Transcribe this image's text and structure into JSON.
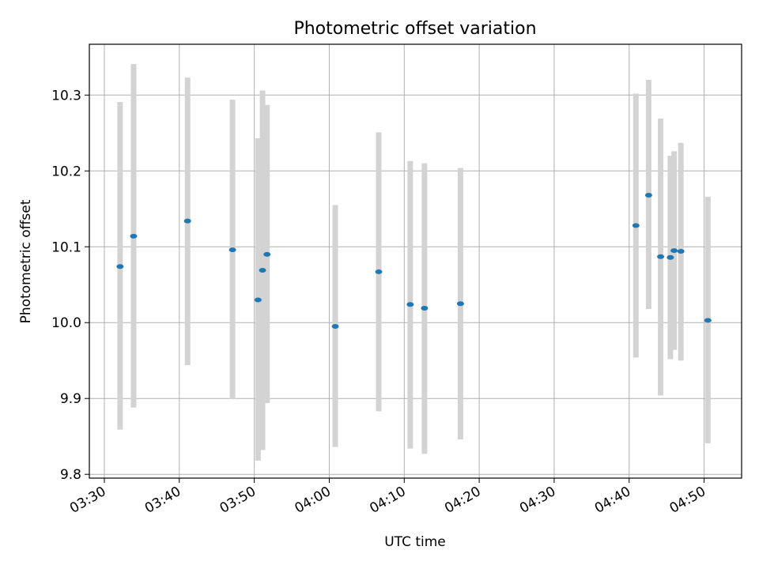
{
  "chart_data": {
    "type": "scatter",
    "title": "Photometric offset variation",
    "xlabel": "UTC time",
    "ylabel": "Photometric offset",
    "grid": true,
    "xlim": [
      208,
      295
    ],
    "ylim": [
      9.795,
      10.367
    ],
    "x_unit": "minutes after 00:00 UTC",
    "x_ticks": [
      {
        "value": 210,
        "label": "03:30"
      },
      {
        "value": 220,
        "label": "03:40"
      },
      {
        "value": 230,
        "label": "03:50"
      },
      {
        "value": 240,
        "label": "04:00"
      },
      {
        "value": 250,
        "label": "04:10"
      },
      {
        "value": 260,
        "label": "04:20"
      },
      {
        "value": 270,
        "label": "04:30"
      },
      {
        "value": 280,
        "label": "04:40"
      },
      {
        "value": 290,
        "label": "04:50"
      }
    ],
    "y_ticks": [
      {
        "value": 9.8,
        "label": "9.8"
      },
      {
        "value": 9.9,
        "label": "9.9"
      },
      {
        "value": 10.0,
        "label": "10.0"
      },
      {
        "value": 10.1,
        "label": "10.1"
      },
      {
        "value": 10.2,
        "label": "10.2"
      },
      {
        "value": 10.3,
        "label": "10.3"
      }
    ],
    "marker_color": "#1f77b4",
    "errorbar_color": "#d3d3d3",
    "points": [
      {
        "x": 212.1,
        "y": 10.074,
        "low": 9.859,
        "high": 10.291
      },
      {
        "x": 213.9,
        "y": 10.114,
        "low": 9.888,
        "high": 10.341
      },
      {
        "x": 221.1,
        "y": 10.134,
        "low": 9.944,
        "high": 10.323
      },
      {
        "x": 227.1,
        "y": 10.096,
        "low": 9.899,
        "high": 10.294
      },
      {
        "x": 230.5,
        "y": 10.03,
        "low": 9.818,
        "high": 10.243
      },
      {
        "x": 231.1,
        "y": 10.069,
        "low": 9.832,
        "high": 10.306
      },
      {
        "x": 231.7,
        "y": 10.09,
        "low": 9.894,
        "high": 10.287
      },
      {
        "x": 240.8,
        "y": 9.995,
        "low": 9.836,
        "high": 10.155
      },
      {
        "x": 246.6,
        "y": 10.067,
        "low": 9.883,
        "high": 10.251
      },
      {
        "x": 250.8,
        "y": 10.024,
        "low": 9.834,
        "high": 10.213
      },
      {
        "x": 252.7,
        "y": 10.019,
        "low": 9.827,
        "high": 10.21
      },
      {
        "x": 257.5,
        "y": 10.025,
        "low": 9.846,
        "high": 10.204
      },
      {
        "x": 280.9,
        "y": 10.128,
        "low": 9.954,
        "high": 10.302
      },
      {
        "x": 282.6,
        "y": 10.168,
        "low": 10.018,
        "high": 10.32
      },
      {
        "x": 284.2,
        "y": 10.087,
        "low": 9.904,
        "high": 10.269
      },
      {
        "x": 285.5,
        "y": 10.086,
        "low": 9.952,
        "high": 10.22
      },
      {
        "x": 286.0,
        "y": 10.095,
        "low": 9.964,
        "high": 10.226
      },
      {
        "x": 286.9,
        "y": 10.094,
        "low": 9.95,
        "high": 10.237
      },
      {
        "x": 290.5,
        "y": 10.003,
        "low": 9.841,
        "high": 10.166
      }
    ]
  }
}
